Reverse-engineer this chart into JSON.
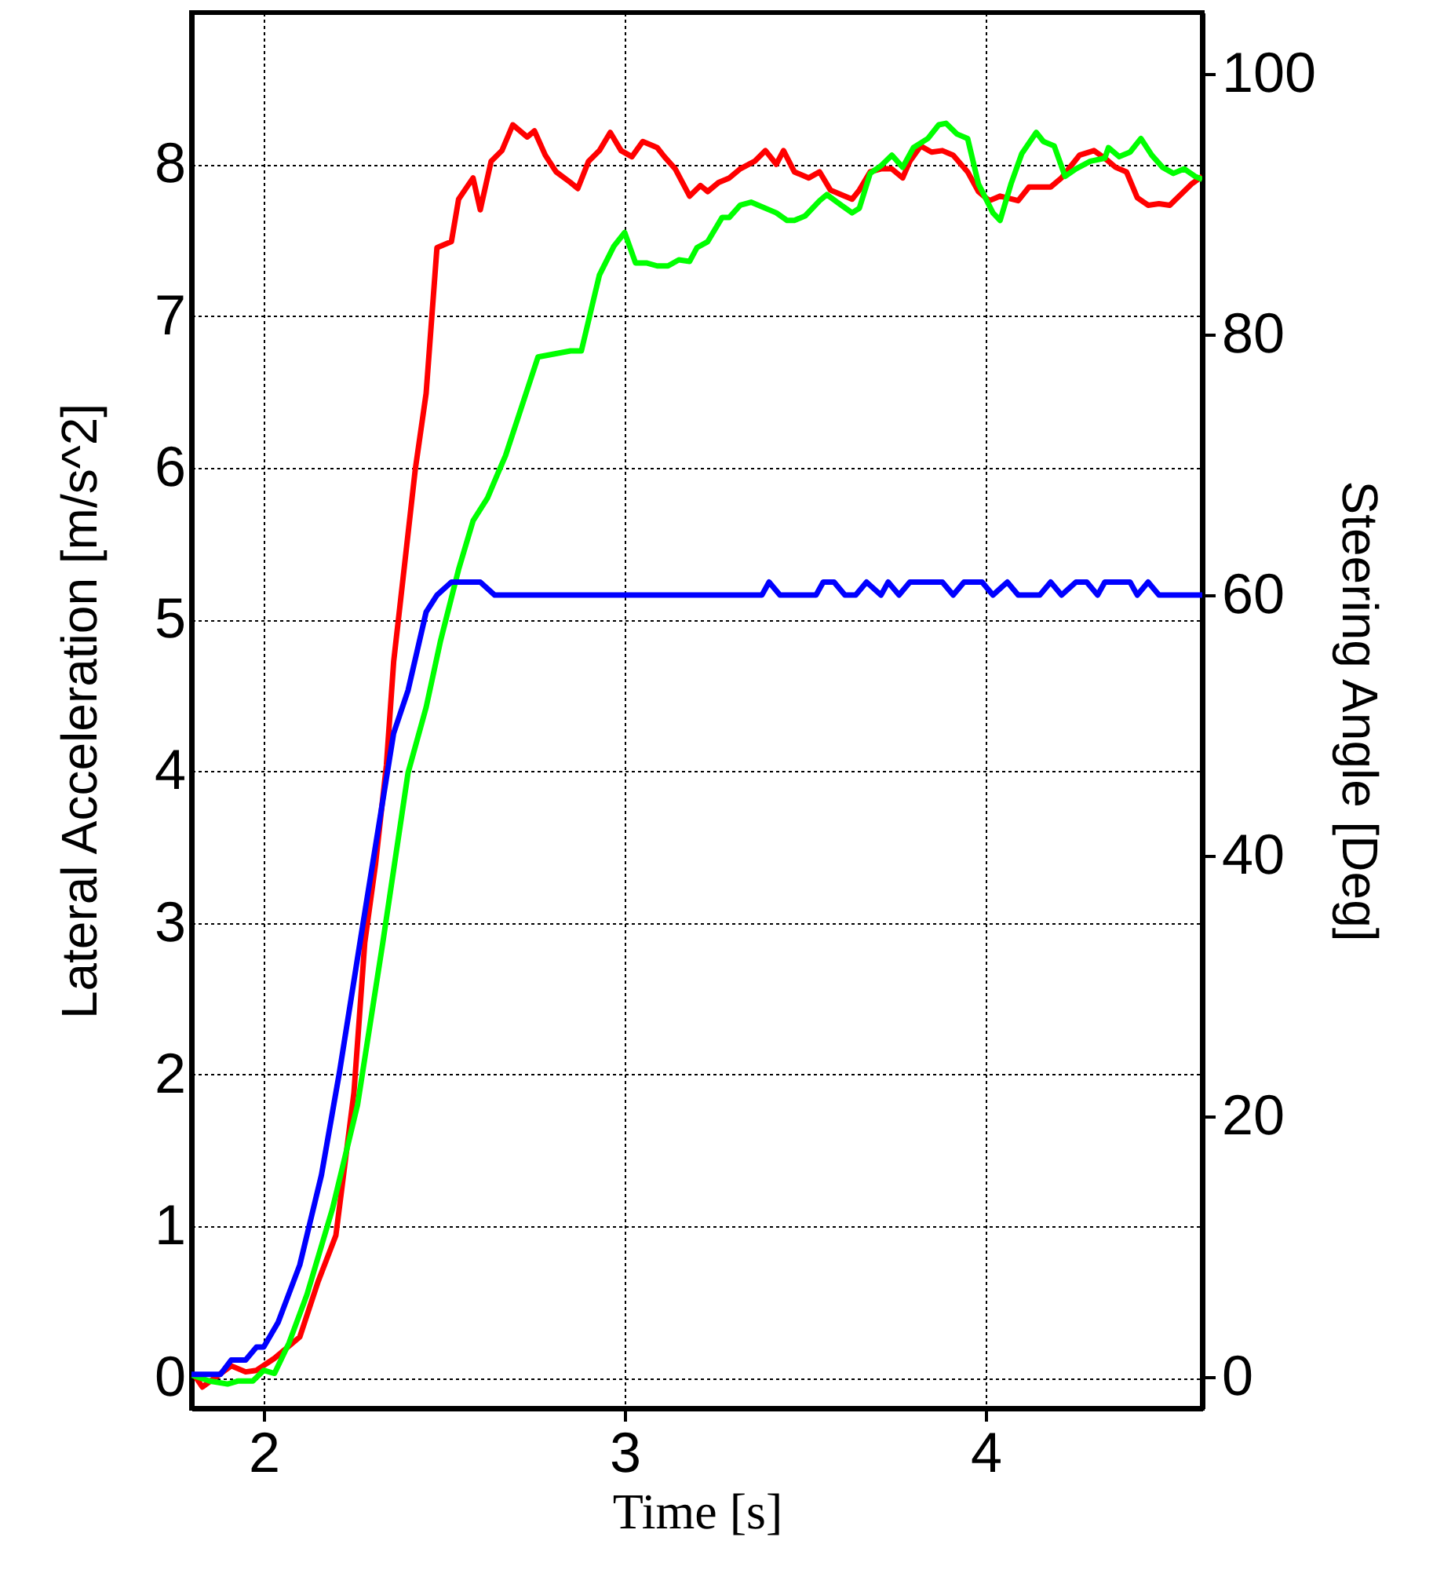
{
  "chart_data": {
    "type": "line",
    "xlabel": "Time [s]",
    "ylabel": "Lateral Acceleration  [m/s^2]",
    "y2label": "Steering Angle  [Deg]",
    "xlim": [
      1.8,
      4.6
    ],
    "xticks": [
      2,
      3,
      4
    ],
    "ylim": [
      -0.2,
      9
    ],
    "yticks": [
      0,
      1,
      2,
      3,
      4,
      5,
      6,
      7,
      8
    ],
    "y2lim": [
      -2.4,
      104.7
    ],
    "y2ticks": [
      0,
      20,
      40,
      60,
      80,
      100
    ],
    "grid": true,
    "series": [
      {
        "color": "#ff0000",
        "x": [
          1.805,
          1.83,
          1.87,
          1.91,
          1.95,
          1.98,
          2.03,
          2.1,
          2.15,
          2.2,
          2.25,
          2.28,
          2.31,
          2.34,
          2.36,
          2.42,
          2.45,
          2.48,
          2.52,
          2.54,
          2.58,
          2.6,
          2.63,
          2.66,
          2.69,
          2.73,
          2.75,
          2.78,
          2.81,
          2.85,
          2.87,
          2.9,
          2.93,
          2.96,
          2.99,
          3.02,
          3.05,
          3.09,
          3.11,
          3.14,
          3.18,
          3.21,
          3.23,
          3.26,
          3.29,
          3.32,
          3.36,
          3.39,
          3.42,
          3.44,
          3.47,
          3.51,
          3.54,
          3.57,
          3.6,
          3.63,
          3.65,
          3.68,
          3.71,
          3.74,
          3.77,
          3.79,
          3.82,
          3.85,
          3.88,
          3.91,
          3.95,
          3.98,
          4.01,
          4.04,
          4.09,
          4.12,
          4.15,
          4.18,
          4.21,
          4.24,
          4.26,
          4.3,
          4.33,
          4.36,
          4.39,
          4.42,
          4.45,
          4.48,
          4.51,
          4.54,
          4.57,
          4.6
        ],
        "values": [
          0.03,
          -0.06,
          0.01,
          0.08,
          0.04,
          0.05,
          0.13,
          0.27,
          0.63,
          0.94,
          1.88,
          2.87,
          3.39,
          4.04,
          4.72,
          5.99,
          6.49,
          7.45,
          7.49,
          7.77,
          7.91,
          7.7,
          8.02,
          8.09,
          8.26,
          8.18,
          8.22,
          8.06,
          7.95,
          7.88,
          7.84,
          8.02,
          8.09,
          8.21,
          8.09,
          8.05,
          8.15,
          8.11,
          8.05,
          7.97,
          7.79,
          7.86,
          7.82,
          7.88,
          7.91,
          7.97,
          8.02,
          8.09,
          8.0,
          8.09,
          7.95,
          7.91,
          7.95,
          7.83,
          7.8,
          7.77,
          7.83,
          7.95,
          7.97,
          7.97,
          7.91,
          8.02,
          8.12,
          8.08,
          8.09,
          8.06,
          7.95,
          7.82,
          7.76,
          7.79,
          7.76,
          7.85,
          7.85,
          7.85,
          7.91,
          8.0,
          8.06,
          8.09,
          8.04,
          7.98,
          7.95,
          7.78,
          7.73,
          7.74,
          7.73,
          7.8,
          7.87,
          7.92
        ]
      },
      {
        "color": "#00ff00",
        "x": [
          1.8,
          1.85,
          1.9,
          1.93,
          1.97,
          2.0,
          2.03,
          2.07,
          2.12,
          2.19,
          2.26,
          2.33,
          2.4,
          2.45,
          2.49,
          2.54,
          2.58,
          2.62,
          2.65,
          2.67,
          2.76,
          2.85,
          2.88,
          2.93,
          2.97,
          3.0,
          3.03,
          3.06,
          3.09,
          3.12,
          3.15,
          3.18,
          3.2,
          3.23,
          3.27,
          3.29,
          3.32,
          3.35,
          3.42,
          3.45,
          3.47,
          3.5,
          3.54,
          3.56,
          3.6,
          3.63,
          3.65,
          3.68,
          3.71,
          3.74,
          3.77,
          3.8,
          3.84,
          3.87,
          3.89,
          3.92,
          3.95,
          3.98,
          4.02,
          4.04,
          4.07,
          4.1,
          4.14,
          4.16,
          4.19,
          4.22,
          4.25,
          4.29,
          4.33,
          4.34,
          4.37,
          4.4,
          4.43,
          4.46,
          4.49,
          4.52,
          4.55,
          4.58,
          4.6
        ],
        "values": [
          0.02,
          -0.02,
          -0.04,
          -0.02,
          -0.02,
          0.05,
          0.03,
          0.23,
          0.55,
          1.11,
          1.8,
          2.87,
          3.99,
          4.42,
          4.86,
          5.33,
          5.65,
          5.8,
          5.97,
          6.08,
          6.73,
          6.77,
          6.77,
          7.27,
          7.46,
          7.55,
          7.35,
          7.35,
          7.33,
          7.33,
          7.37,
          7.36,
          7.45,
          7.49,
          7.65,
          7.65,
          7.73,
          7.75,
          7.68,
          7.63,
          7.63,
          7.66,
          7.76,
          7.8,
          7.73,
          7.68,
          7.71,
          7.94,
          7.99,
          8.06,
          7.98,
          8.11,
          8.17,
          8.26,
          8.27,
          8.2,
          8.17,
          7.87,
          7.68,
          7.63,
          7.87,
          8.07,
          8.21,
          8.15,
          8.12,
          7.92,
          7.97,
          8.02,
          8.04,
          8.11,
          8.05,
          8.08,
          8.17,
          8.06,
          7.98,
          7.94,
          7.97,
          7.92,
          7.9
        ]
      },
      {
        "color": "#0000ff",
        "axis": "y2",
        "x": [
          1.8,
          1.88,
          1.91,
          1.95,
          1.98,
          2.0,
          2.04,
          2.1,
          2.16,
          2.21,
          2.27,
          2.36,
          2.4,
          2.45,
          2.48,
          2.52,
          2.6,
          2.64,
          3.38,
          3.4,
          3.43,
          3.53,
          3.55,
          3.58,
          3.61,
          3.64,
          3.67,
          3.71,
          3.73,
          3.76,
          3.79,
          3.88,
          3.91,
          3.94,
          3.99,
          4.02,
          4.06,
          4.09,
          4.15,
          4.18,
          4.21,
          4.25,
          4.28,
          4.31,
          4.33,
          4.4,
          4.42,
          4.45,
          4.48,
          4.57,
          4.6
        ],
        "values": [
          0.2,
          0.2,
          1.3,
          1.3,
          2.3,
          2.3,
          4.2,
          8.6,
          15.5,
          23.4,
          33.9,
          49.4,
          52.7,
          58.7,
          60,
          61,
          61,
          60,
          60,
          61,
          60,
          60,
          61,
          61,
          60,
          60,
          61,
          60,
          61,
          60,
          61,
          61,
          60,
          61,
          61,
          60,
          61,
          60,
          60,
          61,
          60,
          61,
          61,
          60,
          61,
          61,
          60,
          61,
          60,
          60,
          60
        ]
      }
    ]
  }
}
